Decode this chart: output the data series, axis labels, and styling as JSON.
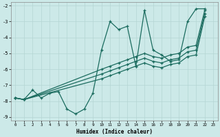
{
  "xlabel": "Humidex (Indice chaleur)",
  "bg_color": "#cce9e8",
  "line_color": "#1a6b5e",
  "grid_color": "#b5d5d3",
  "xlim": [
    -0.5,
    23.5
  ],
  "ylim": [
    -9.2,
    -1.8
  ],
  "xticks": [
    0,
    1,
    2,
    3,
    4,
    5,
    6,
    7,
    8,
    9,
    10,
    11,
    12,
    13,
    14,
    15,
    16,
    17,
    18,
    19,
    20,
    21,
    22,
    23
  ],
  "yticks": [
    -9,
    -8,
    -7,
    -6,
    -5,
    -4,
    -3,
    -2
  ],
  "series": [
    {
      "x": [
        0,
        1,
        2,
        3,
        4,
        5,
        6,
        7,
        8,
        9,
        10,
        11,
        12,
        13,
        14,
        15,
        16,
        17,
        18,
        19,
        20,
        21,
        22
      ],
      "y": [
        -7.8,
        -7.9,
        -7.3,
        -7.8,
        -7.5,
        -7.4,
        -8.5,
        -8.8,
        -8.5,
        -7.5,
        -4.8,
        -3.0,
        -3.5,
        -3.3,
        -5.8,
        -2.3,
        -4.8,
        -5.1,
        -5.5,
        -5.4,
        -3.0,
        -2.2,
        -2.2
      ]
    },
    {
      "x": [
        0,
        1,
        10,
        11,
        12,
        13,
        14,
        15,
        16,
        17,
        18,
        19,
        20,
        21,
        22
      ],
      "y": [
        -7.8,
        -7.9,
        -6.0,
        -5.8,
        -5.6,
        -5.4,
        -5.2,
        -5.0,
        -5.2,
        -5.3,
        -5.1,
        -5.0,
        -4.6,
        -4.5,
        -2.3
      ]
    },
    {
      "x": [
        0,
        1,
        10,
        11,
        12,
        13,
        14,
        15,
        16,
        17,
        18,
        19,
        20,
        21,
        22
      ],
      "y": [
        -7.8,
        -7.9,
        -6.3,
        -6.1,
        -5.9,
        -5.7,
        -5.5,
        -5.3,
        -5.5,
        -5.6,
        -5.4,
        -5.3,
        -4.9,
        -4.8,
        -2.5
      ]
    },
    {
      "x": [
        0,
        1,
        10,
        11,
        12,
        13,
        14,
        15,
        16,
        17,
        18,
        19,
        20,
        21,
        22
      ],
      "y": [
        -7.8,
        -7.9,
        -6.6,
        -6.4,
        -6.2,
        -6.0,
        -5.8,
        -5.6,
        -5.8,
        -5.9,
        -5.7,
        -5.6,
        -5.2,
        -5.1,
        -2.7
      ]
    }
  ]
}
